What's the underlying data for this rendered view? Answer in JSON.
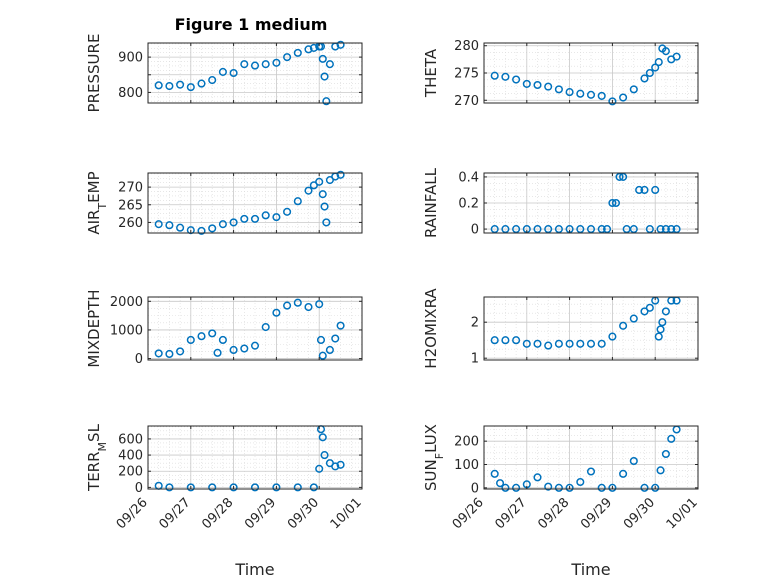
{
  "title": "Figure 1 medium",
  "marker_color": "#0072BD",
  "chart_data": [
    {
      "type": "scatter",
      "ylabel": "PRESSURE",
      "ylabel_sub": "",
      "ylabel_rest": "",
      "ylim": [
        770,
        940
      ],
      "yticks": [
        800,
        850,
        900
      ],
      "ytick_labels": [
        "800",
        "",
        "900"
      ],
      "x": [
        "09/26 06:00",
        "09/26 12:00",
        "09/26 18:00",
        "09/27 00:00",
        "09/27 06:00",
        "09/27 12:00",
        "09/27 18:00",
        "09/28 00:00",
        "09/28 06:00",
        "09/28 12:00",
        "09/28 18:00",
        "09/29 00:00",
        "09/29 06:00",
        "09/29 12:00",
        "09/29 18:00",
        "09/29 21:00",
        "09/30 00:00",
        "09/30 01:00",
        "09/30 02:00",
        "09/30 03:00",
        "09/30 04:00",
        "09/30 06:00",
        "09/30 09:00",
        "09/30 12:00"
      ],
      "y": [
        820,
        818,
        822,
        815,
        825,
        835,
        858,
        855,
        880,
        876,
        880,
        884,
        900,
        912,
        922,
        926,
        930,
        930,
        895,
        845,
        775,
        880,
        930,
        935
      ]
    },
    {
      "type": "scatter",
      "ylabel": "THETA",
      "ylabel_sub": "",
      "ylabel_rest": "",
      "ylim": [
        269.5,
        280.5
      ],
      "yticks": [
        270,
        275,
        280
      ],
      "ytick_labels": [
        "270",
        "275",
        "280"
      ],
      "x": [
        "09/26 06:00",
        "09/26 12:00",
        "09/26 18:00",
        "09/27 00:00",
        "09/27 06:00",
        "09/27 12:00",
        "09/27 18:00",
        "09/28 00:00",
        "09/28 06:00",
        "09/28 12:00",
        "09/28 18:00",
        "09/29 00:00",
        "09/29 06:00",
        "09/29 12:00",
        "09/29 18:00",
        "09/29 21:00",
        "09/30 00:00",
        "09/30 02:00",
        "09/30 04:00",
        "09/30 06:00",
        "09/30 09:00",
        "09/30 12:00"
      ],
      "y": [
        274.5,
        274.3,
        273.8,
        273.0,
        272.8,
        272.5,
        272.0,
        271.5,
        271.2,
        271.0,
        270.8,
        269.8,
        270.5,
        272.0,
        274.0,
        275.0,
        276.0,
        277.0,
        279.5,
        279.0,
        277.5,
        278.0
      ]
    },
    {
      "type": "scatter",
      "ylabel": "AIR",
      "ylabel_sub": "T",
      "ylabel_rest": "EMP",
      "ylim": [
        257,
        274
      ],
      "yticks": [
        260,
        265,
        270
      ],
      "ytick_labels": [
        "260",
        "265",
        "270"
      ],
      "x": [
        "09/26 06:00",
        "09/26 12:00",
        "09/26 18:00",
        "09/27 00:00",
        "09/27 06:00",
        "09/27 12:00",
        "09/27 18:00",
        "09/28 00:00",
        "09/28 06:00",
        "09/28 12:00",
        "09/28 18:00",
        "09/29 00:00",
        "09/29 06:00",
        "09/29 12:00",
        "09/29 18:00",
        "09/29 21:00",
        "09/30 00:00",
        "09/30 02:00",
        "09/30 03:00",
        "09/30 04:00",
        "09/30 06:00",
        "09/30 09:00",
        "09/30 12:00"
      ],
      "y": [
        259.5,
        259.2,
        258.5,
        257.8,
        257.6,
        258.3,
        259.5,
        260.0,
        261.0,
        261.0,
        262.0,
        261.5,
        263.0,
        266.0,
        269.0,
        270.5,
        271.5,
        268.0,
        264.5,
        260.0,
        272.0,
        273.0,
        273.5
      ]
    },
    {
      "type": "scatter",
      "ylabel": "RAINFALL",
      "ylabel_sub": "",
      "ylabel_rest": "",
      "ylim": [
        -0.03,
        0.43
      ],
      "yticks": [
        0,
        0.2,
        0.4
      ],
      "ytick_labels": [
        "0",
        "0.2",
        "0.4"
      ],
      "x": [
        "09/26 06:00",
        "09/26 12:00",
        "09/26 18:00",
        "09/27 00:00",
        "09/27 06:00",
        "09/27 12:00",
        "09/27 18:00",
        "09/28 00:00",
        "09/28 06:00",
        "09/28 12:00",
        "09/28 18:00",
        "09/28 21:00",
        "09/29 00:00",
        "09/29 02:00",
        "09/29 04:00",
        "09/29 06:00",
        "09/29 08:00",
        "09/29 12:00",
        "09/29 15:00",
        "09/29 18:00",
        "09/29 21:00",
        "09/30 00:00",
        "09/30 03:00",
        "09/30 06:00",
        "09/30 09:00",
        "09/30 12:00"
      ],
      "y": [
        0,
        0,
        0,
        0,
        0,
        0,
        0,
        0,
        0,
        0,
        0,
        0,
        0.2,
        0.2,
        0.4,
        0.4,
        0,
        0,
        0.3,
        0.3,
        0,
        0.3,
        0,
        0,
        0,
        0
      ]
    },
    {
      "type": "scatter",
      "ylabel": "MIXDEPTH",
      "ylabel_sub": "",
      "ylabel_rest": "",
      "ylim": [
        -50,
        2150
      ],
      "yticks": [
        0,
        1000,
        2000
      ],
      "ytick_labels": [
        "0",
        "1000",
        "2000"
      ],
      "x": [
        "09/26 06:00",
        "09/26 12:00",
        "09/26 18:00",
        "09/27 00:00",
        "09/27 06:00",
        "09/27 12:00",
        "09/27 15:00",
        "09/27 18:00",
        "09/28 00:00",
        "09/28 06:00",
        "09/28 12:00",
        "09/28 18:00",
        "09/29 00:00",
        "09/29 06:00",
        "09/29 12:00",
        "09/29 18:00",
        "09/30 00:00",
        "09/30 01:00",
        "09/30 02:00",
        "09/30 06:00",
        "09/30 09:00",
        "09/30 12:00"
      ],
      "y": [
        180,
        160,
        250,
        650,
        780,
        880,
        200,
        650,
        300,
        350,
        450,
        1100,
        1600,
        1850,
        1950,
        1800,
        1900,
        650,
        100,
        300,
        700,
        1150
      ]
    },
    {
      "type": "scatter",
      "ylabel": "H2OMIXRA",
      "ylabel_sub": "",
      "ylabel_rest": "",
      "ylim": [
        0.95,
        2.7
      ],
      "yticks": [
        1,
        2
      ],
      "ytick_labels": [
        "1",
        "2"
      ],
      "x": [
        "09/26 06:00",
        "09/26 12:00",
        "09/26 18:00",
        "09/27 00:00",
        "09/27 06:00",
        "09/27 12:00",
        "09/27 18:00",
        "09/28 00:00",
        "09/28 06:00",
        "09/28 12:00",
        "09/28 18:00",
        "09/29 00:00",
        "09/29 06:00",
        "09/29 12:00",
        "09/29 18:00",
        "09/29 21:00",
        "09/30 00:00",
        "09/30 02:00",
        "09/30 03:00",
        "09/30 04:00",
        "09/30 06:00",
        "09/30 09:00",
        "09/30 12:00"
      ],
      "y": [
        1.5,
        1.5,
        1.5,
        1.4,
        1.4,
        1.35,
        1.4,
        1.4,
        1.4,
        1.4,
        1.4,
        1.6,
        1.9,
        2.1,
        2.3,
        2.4,
        2.6,
        1.6,
        1.8,
        2.0,
        2.3,
        2.6,
        2.6
      ]
    },
    {
      "type": "scatter",
      "ylabel": "TERR",
      "ylabel_sub": "M",
      "ylabel_rest": "SL",
      "ylim": [
        -20,
        760
      ],
      "yticks": [
        0,
        200,
        400,
        600
      ],
      "ytick_labels": [
        "0",
        "200",
        "400",
        "600"
      ],
      "x": [
        "09/26 06:00",
        "09/26 12:00",
        "09/27 00:00",
        "09/27 12:00",
        "09/28 00:00",
        "09/28 12:00",
        "09/29 00:00",
        "09/29 12:00",
        "09/29 21:00",
        "09/30 00:00",
        "09/30 01:00",
        "09/30 02:00",
        "09/30 03:00",
        "09/30 06:00",
        "09/30 09:00",
        "09/30 12:00"
      ],
      "y": [
        20,
        0,
        0,
        0,
        0,
        0,
        0,
        0,
        0,
        230,
        720,
        620,
        400,
        300,
        260,
        280
      ]
    },
    {
      "type": "scatter",
      "ylabel": "SUN",
      "ylabel_sub": "F",
      "ylabel_rest": "LUX",
      "ylim": [
        -5,
        265
      ],
      "yticks": [
        0,
        100,
        200
      ],
      "ytick_labels": [
        "0",
        "100",
        "200"
      ],
      "x": [
        "09/26 06:00",
        "09/26 09:00",
        "09/26 12:00",
        "09/26 18:00",
        "09/27 00:00",
        "09/27 06:00",
        "09/27 12:00",
        "09/27 18:00",
        "09/28 00:00",
        "09/28 06:00",
        "09/28 12:00",
        "09/28 18:00",
        "09/29 00:00",
        "09/29 06:00",
        "09/29 12:00",
        "09/29 18:00",
        "09/30 00:00",
        "09/30 03:00",
        "09/30 06:00",
        "09/30 09:00",
        "09/30 12:00"
      ],
      "y": [
        60,
        20,
        0,
        0,
        15,
        45,
        5,
        0,
        0,
        25,
        70,
        0,
        0,
        60,
        115,
        0,
        0,
        75,
        145,
        210,
        250
      ]
    }
  ],
  "xaxis": {
    "label": "Time",
    "tick_labels": [
      "09/26",
      "09/27",
      "09/28",
      "09/29",
      "09/30",
      "10/01"
    ]
  }
}
